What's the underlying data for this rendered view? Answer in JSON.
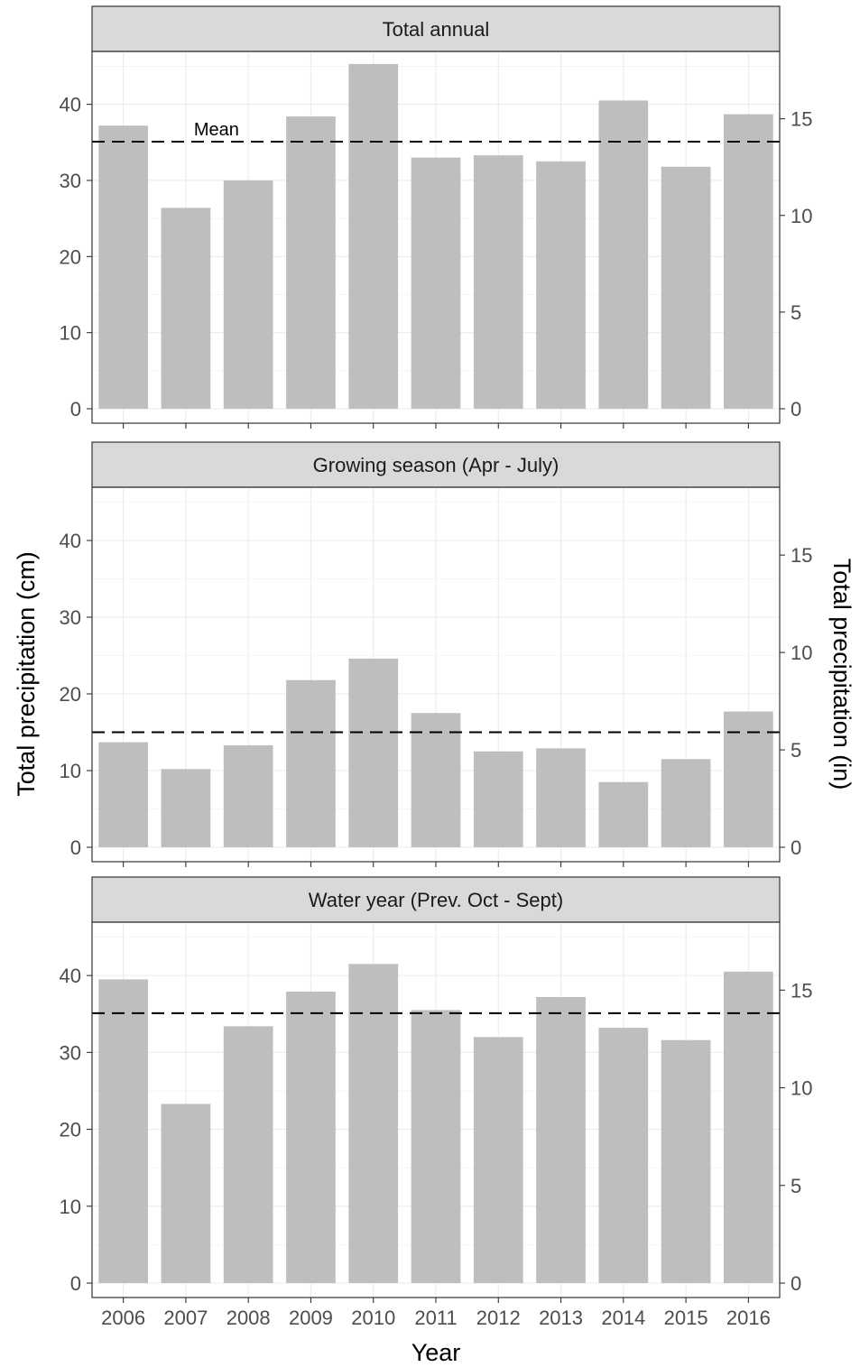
{
  "chart_data": {
    "type": "bar",
    "categories": [
      "2006",
      "2007",
      "2008",
      "2009",
      "2010",
      "2011",
      "2012",
      "2013",
      "2014",
      "2015",
      "2016"
    ],
    "xlabel": "Year",
    "ylabel": "Total precipitation (cm)",
    "ylabel_secondary": "Total precipitation (in)",
    "ylim": [
      0,
      46
    ],
    "y_ticks": [
      0,
      10,
      20,
      30,
      40
    ],
    "y2_ticks": [
      0,
      5,
      10,
      15
    ],
    "y2_factor_cm_per_unit": 2.54,
    "grid": true,
    "bar_color": "#bebebe",
    "mean_line_color": "#000000",
    "panels": [
      {
        "title": "Total annual",
        "values": [
          37.2,
          26.4,
          30.0,
          38.4,
          45.3,
          33.0,
          33.3,
          32.5,
          40.5,
          31.8,
          38.7
        ],
        "mean": 35.1,
        "mean_label": "Mean"
      },
      {
        "title": "Growing season (Apr - July)",
        "values": [
          13.7,
          10.2,
          13.3,
          21.8,
          24.6,
          17.5,
          12.5,
          12.9,
          8.5,
          11.5,
          17.7
        ],
        "mean": 15.0,
        "mean_label": ""
      },
      {
        "title": "Water year (Prev. Oct - Sept)",
        "values": [
          39.5,
          23.3,
          33.4,
          37.9,
          41.5,
          35.5,
          32.0,
          37.2,
          33.2,
          31.6,
          40.5
        ],
        "mean": 35.1,
        "mean_label": ""
      }
    ]
  }
}
